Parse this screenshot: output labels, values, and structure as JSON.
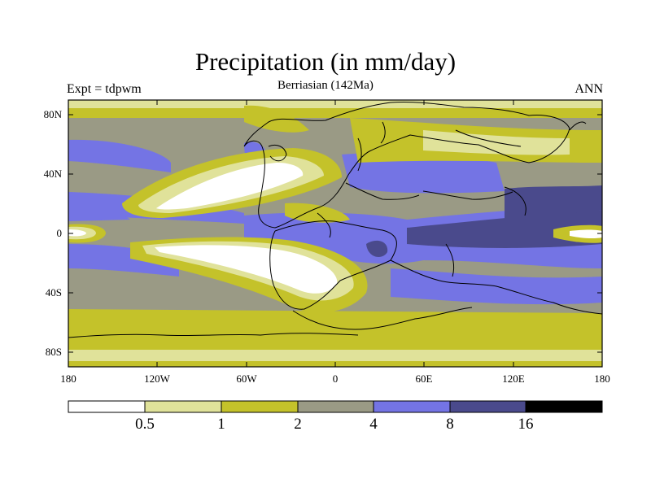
{
  "title": "Precipitation (in mm/day)",
  "subtitle": "Berriasian (142Ma)",
  "left_label": "Expt = tdpwm",
  "right_label": "ANN",
  "colors": {
    "level0": "#ffffff",
    "level1": "#e0e29a",
    "level2": "#c4c22a",
    "level3": "#9a9a85",
    "level4": "#7474e4",
    "level5": "#4a4a8c",
    "level6": "#000000",
    "coast": "#000000"
  },
  "chart_data": {
    "type": "heatmap",
    "title": "Precipitation (in mm/day)",
    "subtitle": "Berriasian (142Ma)",
    "x_ticks": [
      "180",
      "120W",
      "60W",
      "0",
      "60E",
      "120E",
      "180"
    ],
    "x_values": [
      -180,
      -120,
      -60,
      0,
      60,
      120,
      180
    ],
    "y_ticks": [
      "80N",
      "40N",
      "0",
      "40S",
      "80S"
    ],
    "y_values": [
      80,
      40,
      0,
      -40,
      -80
    ],
    "xlim": [
      -180,
      180
    ],
    "ylim": [
      -90,
      90
    ],
    "colorbar": {
      "levels": [
        0.5,
        1,
        2,
        4,
        8,
        16
      ],
      "labels": [
        "0.5",
        "1",
        "2",
        "4",
        "8",
        "16"
      ]
    }
  }
}
